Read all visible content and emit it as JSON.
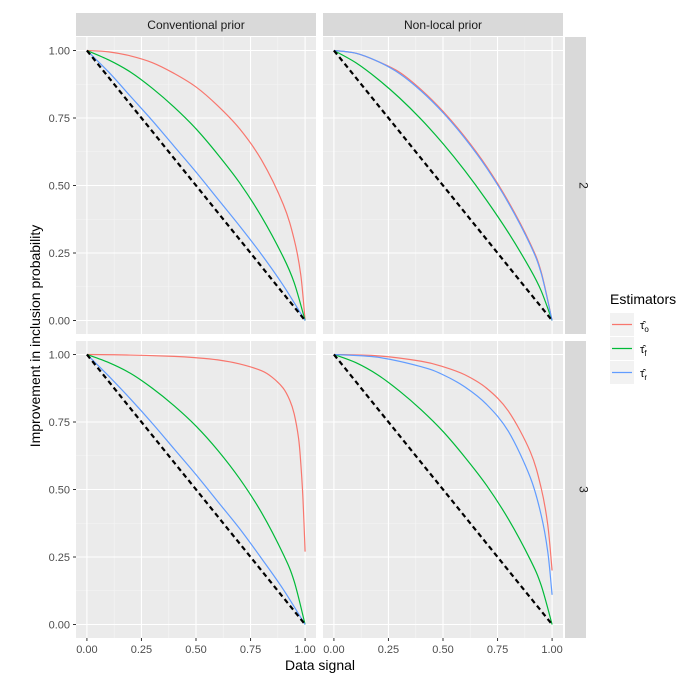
{
  "chart_data": {
    "type": "line",
    "xlabel": "Data signal",
    "ylabel": "Improvement in inclusion probability",
    "xlim": [
      0,
      1
    ],
    "ylim": [
      0,
      1
    ],
    "x_ticks": [
      "0.00",
      "0.25",
      "0.50",
      "0.75",
      "1.00"
    ],
    "y_ticks": [
      "0.00",
      "0.25",
      "0.50",
      "0.75",
      "1.00"
    ],
    "columns": [
      "Conventional prior",
      "Non-local prior"
    ],
    "rows": [
      "2",
      "3"
    ],
    "grid": true,
    "background": "#ebebeb",
    "legend": {
      "title": "Estimators",
      "position": "right",
      "entries": [
        {
          "key": "o",
          "label": "τ̂o",
          "base": "τ̂",
          "sub": "o",
          "color": "#F8766D"
        },
        {
          "key": "f",
          "label": "τ̂f",
          "base": "τ̂",
          "sub": "f",
          "color": "#00BA38"
        },
        {
          "key": "r",
          "label": "τ̂r",
          "base": "τ̂",
          "sub": "r",
          "color": "#619CFF"
        }
      ]
    },
    "reference_line": {
      "style": "dashed",
      "color": "#000000",
      "x": [
        0,
        1
      ],
      "y": [
        1,
        0
      ]
    },
    "panels": [
      {
        "col": "Conventional prior",
        "row": "2",
        "series": [
          {
            "name": "τ̂o",
            "x": [
              0,
              0.1,
              0.2,
              0.3,
              0.4,
              0.5,
              0.6,
              0.7,
              0.8,
              0.9,
              0.95,
              0.98,
              1.0
            ],
            "y": [
              1.0,
              0.995,
              0.98,
              0.955,
              0.915,
              0.865,
              0.795,
              0.71,
              0.595,
              0.43,
              0.3,
              0.17,
              0.0
            ]
          },
          {
            "name": "τ̂f",
            "x": [
              0,
              0.1,
              0.2,
              0.3,
              0.4,
              0.5,
              0.6,
              0.7,
              0.8,
              0.9,
              0.95,
              1.0
            ],
            "y": [
              1.0,
              0.965,
              0.92,
              0.86,
              0.79,
              0.71,
              0.615,
              0.51,
              0.385,
              0.235,
              0.14,
              0.0
            ]
          },
          {
            "name": "τ̂r",
            "x": [
              0,
              0.1,
              0.2,
              0.3,
              0.4,
              0.5,
              0.6,
              0.7,
              0.8,
              0.9,
              1.0
            ],
            "y": [
              1.0,
              0.92,
              0.83,
              0.74,
              0.645,
              0.55,
              0.45,
              0.35,
              0.245,
              0.13,
              0.0
            ]
          }
        ]
      },
      {
        "col": "Non-local prior",
        "row": "2",
        "series": [
          {
            "name": "τ̂o",
            "x": [
              0,
              0.1,
              0.2,
              0.3,
              0.4,
              0.5,
              0.6,
              0.7,
              0.8,
              0.9,
              0.95,
              1.0
            ],
            "y": [
              1.0,
              0.99,
              0.96,
              0.92,
              0.855,
              0.775,
              0.68,
              0.57,
              0.44,
              0.285,
              0.18,
              0.0
            ]
          },
          {
            "name": "τ̂f",
            "x": [
              0,
              0.1,
              0.2,
              0.3,
              0.4,
              0.5,
              0.6,
              0.7,
              0.8,
              0.9,
              0.95,
              1.0
            ],
            "y": [
              1.0,
              0.955,
              0.895,
              0.825,
              0.745,
              0.655,
              0.555,
              0.445,
              0.325,
              0.19,
              0.11,
              0.0
            ]
          },
          {
            "name": "τ̂r",
            "x": [
              0,
              0.1,
              0.2,
              0.3,
              0.4,
              0.5,
              0.6,
              0.7,
              0.8,
              0.9,
              0.95,
              1.0
            ],
            "y": [
              1.0,
              0.99,
              0.96,
              0.915,
              0.85,
              0.77,
              0.675,
              0.565,
              0.435,
              0.28,
              0.175,
              0.0
            ]
          }
        ]
      },
      {
        "col": "Conventional prior",
        "row": "3",
        "series": [
          {
            "name": "τ̂o",
            "x": [
              0,
              0.2,
              0.4,
              0.5,
              0.6,
              0.7,
              0.8,
              0.85,
              0.9,
              0.93,
              0.95,
              0.97,
              0.98,
              0.99,
              1.0
            ],
            "y": [
              1.0,
              0.998,
              0.993,
              0.988,
              0.98,
              0.965,
              0.94,
              0.915,
              0.875,
              0.83,
              0.78,
              0.69,
              0.6,
              0.47,
              0.27
            ]
          },
          {
            "name": "τ̂f",
            "x": [
              0,
              0.1,
              0.2,
              0.3,
              0.4,
              0.5,
              0.6,
              0.7,
              0.8,
              0.9,
              0.95,
              1.0
            ],
            "y": [
              1.0,
              0.97,
              0.93,
              0.875,
              0.81,
              0.735,
              0.645,
              0.54,
              0.415,
              0.26,
              0.16,
              0.0
            ]
          },
          {
            "name": "τ̂r",
            "x": [
              0,
              0.1,
              0.2,
              0.3,
              0.4,
              0.5,
              0.6,
              0.7,
              0.8,
              0.9,
              1.0
            ],
            "y": [
              1.0,
              0.92,
              0.835,
              0.745,
              0.65,
              0.555,
              0.455,
              0.355,
              0.245,
              0.13,
              0.0
            ]
          }
        ]
      },
      {
        "col": "Non-local prior",
        "row": "3",
        "series": [
          {
            "name": "τ̂o",
            "x": [
              0,
              0.2,
              0.4,
              0.5,
              0.6,
              0.7,
              0.8,
              0.9,
              0.95,
              0.98,
              1.0
            ],
            "y": [
              1.0,
              0.995,
              0.975,
              0.955,
              0.925,
              0.875,
              0.79,
              0.64,
              0.505,
              0.37,
              0.2
            ]
          },
          {
            "name": "τ̂f",
            "x": [
              0,
              0.1,
              0.2,
              0.3,
              0.4,
              0.5,
              0.6,
              0.7,
              0.8,
              0.9,
              0.95,
              1.0
            ],
            "y": [
              1.0,
              0.97,
              0.925,
              0.865,
              0.795,
              0.715,
              0.62,
              0.515,
              0.39,
              0.24,
              0.145,
              0.0
            ]
          },
          {
            "name": "τ̂r",
            "x": [
              0,
              0.2,
              0.4,
              0.5,
              0.6,
              0.7,
              0.8,
              0.9,
              0.95,
              0.98,
              1.0
            ],
            "y": [
              1.0,
              0.99,
              0.955,
              0.925,
              0.88,
              0.815,
              0.715,
              0.545,
              0.405,
              0.27,
              0.11
            ]
          }
        ]
      }
    ]
  }
}
